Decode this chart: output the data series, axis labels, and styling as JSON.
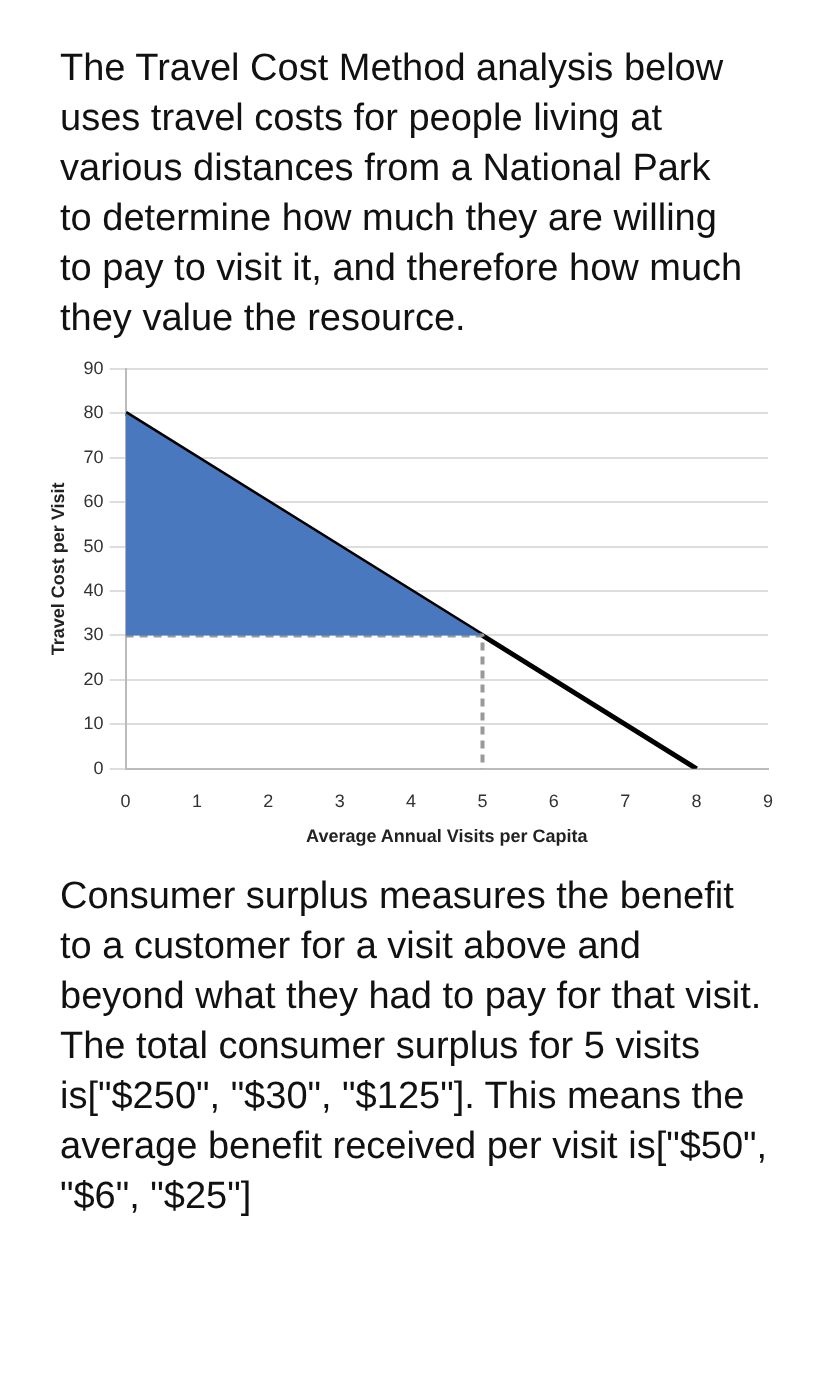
{
  "chart_data": {
    "type": "line",
    "title": "The Travel Cost Method analysis below uses travel costs for people living at various distances from a National Park to determine how much they are willing to pay to visit it, and therefore how much they value the resource.",
    "xlabel": "Average Annual Visits per Capita",
    "ylabel": "Travel Cost per Visit",
    "series": [
      {
        "type": "area",
        "color": "#4a78bf",
        "x": [
          0,
          5
        ],
        "values": [
          80,
          30
        ]
      },
      {
        "type": "line",
        "color": "#999999",
        "line_style": "dashed",
        "x": [
          0,
          5,
          5
        ],
        "values": [
          30,
          30,
          0
        ]
      },
      {
        "color": "#000000",
        "x": [
          0,
          8
        ],
        "values": [
          80,
          0
        ]
      }
    ],
    "xlim": [
      0,
      9
    ],
    "xticks": [
      0,
      1,
      2,
      3,
      4,
      5,
      6,
      7,
      8,
      9
    ],
    "ylim": [
      0,
      90
    ],
    "yticks": [
      0,
      10,
      20,
      30,
      40,
      50,
      60,
      70,
      80,
      90
    ],
    "grid": "y",
    "annotations": [
      "Consumer surplus measures the benefit to a customer for a visit above and beyond what they had to pay for that visit.  The total consumer surplus for 5 visits is[\"$250\", \"$30\", \"$125\"]. This means the average benefit received per visit is[\"$50\", \"$6\", \"$25\"]"
    ]
  }
}
